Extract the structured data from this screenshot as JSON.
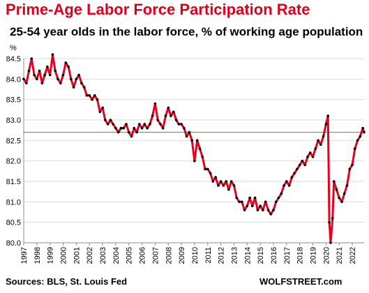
{
  "chart_data": {
    "type": "line",
    "title": "Prime-Age Labor Force Participation Rate",
    "subtitle": "25-54 year olds in the labor force, % of working age population",
    "ylabel": "%",
    "xlabel": "",
    "ylim": [
      80.0,
      84.5
    ],
    "yticks": [
      "80.0",
      "80.5",
      "81.0",
      "81.5",
      "82.0",
      "82.5",
      "83.0",
      "83.5",
      "84.0",
      "84.5"
    ],
    "xlim": [
      1997.0,
      2022.9
    ],
    "xticks": [
      "1997",
      "1998",
      "1999",
      "2000",
      "2001",
      "2002",
      "2003",
      "2004",
      "2005",
      "2006",
      "2007",
      "2008",
      "2009",
      "2010",
      "2011",
      "2012",
      "2013",
      "2014",
      "2015",
      "2016",
      "2017",
      "2018",
      "2019",
      "2020",
      "2021",
      "2022"
    ],
    "grid": true,
    "series": [
      {
        "name": "",
        "color": "#e8001c",
        "points": [
          [
            1997.0,
            84.0
          ],
          [
            1997.2,
            83.9
          ],
          [
            1997.4,
            84.2
          ],
          [
            1997.6,
            84.5
          ],
          [
            1997.8,
            84.1
          ],
          [
            1998.0,
            84.0
          ],
          [
            1998.2,
            84.2
          ],
          [
            1998.4,
            83.9
          ],
          [
            1998.6,
            84.1
          ],
          [
            1998.8,
            84.3
          ],
          [
            1999.0,
            84.1
          ],
          [
            1999.2,
            84.6
          ],
          [
            1999.4,
            84.2
          ],
          [
            1999.6,
            84.0
          ],
          [
            1999.8,
            83.9
          ],
          [
            2000.0,
            84.1
          ],
          [
            2000.2,
            84.4
          ],
          [
            2000.4,
            84.3
          ],
          [
            2000.6,
            84.0
          ],
          [
            2000.8,
            83.8
          ],
          [
            2001.0,
            84.0
          ],
          [
            2001.2,
            84.1
          ],
          [
            2001.4,
            83.9
          ],
          [
            2001.6,
            83.8
          ],
          [
            2001.8,
            83.6
          ],
          [
            2002.0,
            83.6
          ],
          [
            2002.2,
            83.5
          ],
          [
            2002.4,
            83.6
          ],
          [
            2002.6,
            83.5
          ],
          [
            2002.8,
            83.2
          ],
          [
            2003.0,
            83.3
          ],
          [
            2003.2,
            83.0
          ],
          [
            2003.4,
            82.9
          ],
          [
            2003.6,
            83.0
          ],
          [
            2003.8,
            82.9
          ],
          [
            2004.0,
            82.8
          ],
          [
            2004.2,
            82.7
          ],
          [
            2004.4,
            82.8
          ],
          [
            2004.6,
            82.8
          ],
          [
            2004.8,
            82.9
          ],
          [
            2005.0,
            82.7
          ],
          [
            2005.2,
            82.6
          ],
          [
            2005.4,
            82.8
          ],
          [
            2005.6,
            82.7
          ],
          [
            2005.8,
            82.9
          ],
          [
            2006.0,
            82.8
          ],
          [
            2006.2,
            82.9
          ],
          [
            2006.4,
            82.8
          ],
          [
            2006.6,
            82.9
          ],
          [
            2006.8,
            83.1
          ],
          [
            2007.0,
            83.4
          ],
          [
            2007.2,
            83.0
          ],
          [
            2007.4,
            82.9
          ],
          [
            2007.6,
            82.8
          ],
          [
            2007.8,
            83.1
          ],
          [
            2008.0,
            83.3
          ],
          [
            2008.2,
            83.1
          ],
          [
            2008.4,
            83.2
          ],
          [
            2008.6,
            83.0
          ],
          [
            2008.8,
            82.9
          ],
          [
            2009.0,
            82.9
          ],
          [
            2009.2,
            82.8
          ],
          [
            2009.4,
            82.6
          ],
          [
            2009.6,
            82.7
          ],
          [
            2009.8,
            82.5
          ],
          [
            2010.0,
            82.0
          ],
          [
            2010.2,
            82.5
          ],
          [
            2010.4,
            82.3
          ],
          [
            2010.6,
            82.1
          ],
          [
            2010.8,
            81.8
          ],
          [
            2011.0,
            81.8
          ],
          [
            2011.2,
            81.7
          ],
          [
            2011.4,
            81.5
          ],
          [
            2011.6,
            81.6
          ],
          [
            2011.8,
            81.4
          ],
          [
            2012.0,
            81.5
          ],
          [
            2012.2,
            81.4
          ],
          [
            2012.4,
            81.5
          ],
          [
            2012.6,
            81.3
          ],
          [
            2012.8,
            81.5
          ],
          [
            2013.0,
            81.4
          ],
          [
            2013.2,
            81.1
          ],
          [
            2013.4,
            81.0
          ],
          [
            2013.6,
            81.0
          ],
          [
            2013.8,
            80.8
          ],
          [
            2014.0,
            80.9
          ],
          [
            2014.2,
            81.1
          ],
          [
            2014.4,
            80.9
          ],
          [
            2014.6,
            81.1
          ],
          [
            2014.8,
            80.8
          ],
          [
            2015.0,
            80.9
          ],
          [
            2015.2,
            80.8
          ],
          [
            2015.4,
            81.0
          ],
          [
            2015.6,
            80.8
          ],
          [
            2015.8,
            80.7
          ],
          [
            2016.0,
            80.8
          ],
          [
            2016.2,
            81.0
          ],
          [
            2016.4,
            81.1
          ],
          [
            2016.6,
            81.2
          ],
          [
            2016.8,
            81.4
          ],
          [
            2017.0,
            81.5
          ],
          [
            2017.2,
            81.4
          ],
          [
            2017.4,
            81.6
          ],
          [
            2017.6,
            81.7
          ],
          [
            2017.8,
            81.8
          ],
          [
            2018.0,
            81.9
          ],
          [
            2018.2,
            82.0
          ],
          [
            2018.4,
            81.9
          ],
          [
            2018.6,
            82.1
          ],
          [
            2018.8,
            82.2
          ],
          [
            2019.0,
            82.1
          ],
          [
            2019.2,
            82.3
          ],
          [
            2019.4,
            82.5
          ],
          [
            2019.6,
            82.4
          ],
          [
            2019.8,
            82.6
          ],
          [
            2020.0,
            82.9
          ],
          [
            2020.15,
            83.1
          ],
          [
            2020.25,
            80.5
          ],
          [
            2020.35,
            80.0
          ],
          [
            2020.5,
            80.6
          ],
          [
            2020.6,
            81.5
          ],
          [
            2020.8,
            81.3
          ],
          [
            2021.0,
            81.1
          ],
          [
            2021.2,
            81.0
          ],
          [
            2021.4,
            81.2
          ],
          [
            2021.6,
            81.4
          ],
          [
            2021.8,
            81.8
          ],
          [
            2022.0,
            81.9
          ],
          [
            2022.2,
            82.3
          ],
          [
            2022.4,
            82.5
          ],
          [
            2022.6,
            82.6
          ],
          [
            2022.8,
            82.8
          ],
          [
            2022.9,
            82.7
          ]
        ]
      }
    ],
    "reference_line": {
      "y": 82.7,
      "color": "#2e9e3e"
    }
  },
  "footer": {
    "source": "Sources: BLS, St. Louis Fed",
    "brand": "WOLFSTREET.com"
  }
}
